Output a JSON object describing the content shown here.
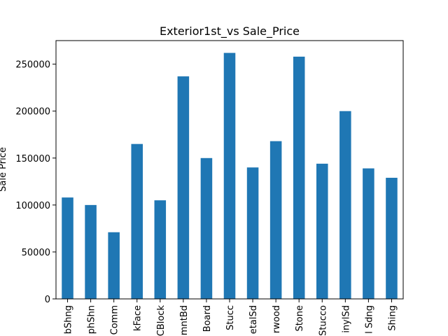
{
  "chart_data": {
    "type": "bar",
    "title": "Exterior1st_vs Sale_Price",
    "xlabel": "",
    "ylabel": "Sale Price",
    "categories": [
      "AsbShng",
      "AsphShn",
      "BrkComm",
      "BrkFace",
      "CBlock",
      "CemntBd",
      "HdBoard",
      "ImStucc",
      "MetalSd",
      "Plywood",
      "Stone",
      "Stucco",
      "VinylSd",
      "Wd Sdng",
      "WdShing"
    ],
    "visible_labels": [
      "bShng",
      "phShn",
      "Comm",
      "kFace",
      "CBlock",
      "mntBd",
      "Board",
      "Stucc",
      "etalSd",
      "rwood",
      "Stone",
      "Stucco",
      "inylSd",
      "l Sdng",
      "Shing"
    ],
    "values": [
      108000,
      100000,
      71000,
      165000,
      105000,
      237000,
      150000,
      262000,
      140000,
      168000,
      258000,
      144000,
      200000,
      139000,
      129000
    ],
    "yticks": [
      0,
      50000,
      100000,
      150000,
      200000,
      250000
    ],
    "ylim": [
      0,
      275100
    ],
    "grid": false,
    "legend": "none",
    "bar_color": "#1f77b4"
  }
}
